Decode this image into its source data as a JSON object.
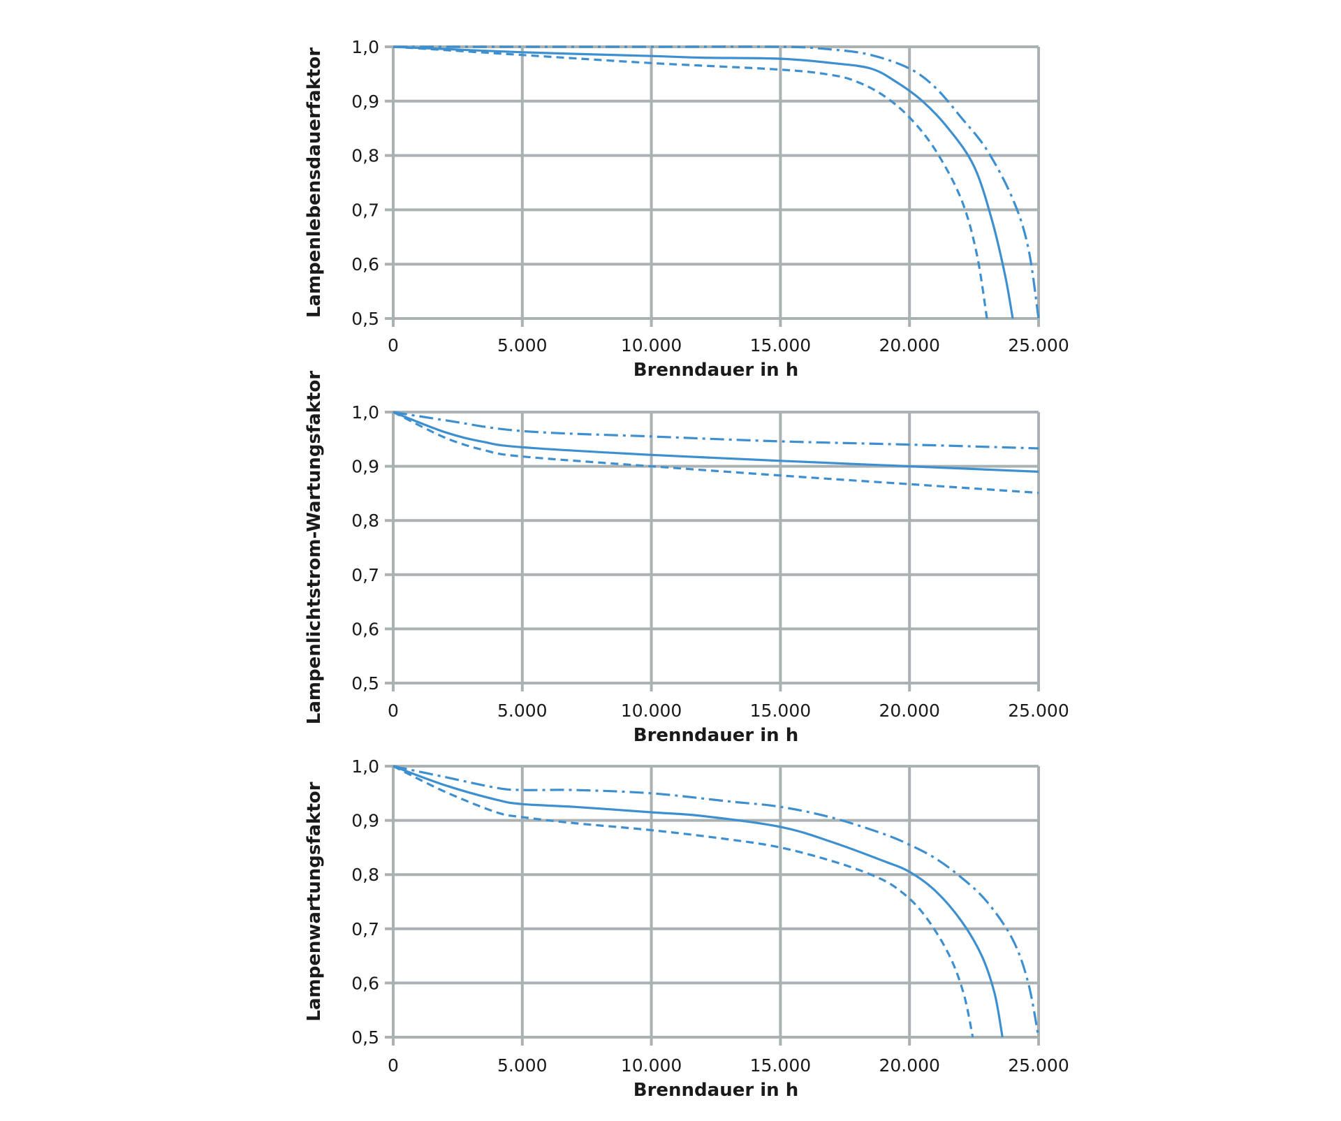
{
  "colors": {
    "line": "#3d8fd0",
    "grid": "#a9b1b3",
    "text": "#1a1a1a"
  },
  "chart_data": [
    {
      "type": "line",
      "ylabel": "Lampenlebensdauerfaktor",
      "xlabel": "Brenndauer in h",
      "xlim": [
        0,
        25000
      ],
      "ylim": [
        0.5,
        1.0
      ],
      "x_ticks": [
        "0",
        "5.000",
        "10.000",
        "15.000",
        "20.000",
        "25.000"
      ],
      "y_ticks": [
        "0,5",
        "0,6",
        "0,7",
        "0,8",
        "0,9",
        "1,0"
      ],
      "grid": true,
      "series": [
        {
          "style": "dashdot",
          "points": [
            [
              0,
              1.0
            ],
            [
              5000,
              1.0
            ],
            [
              10000,
              1.0
            ],
            [
              15000,
              1.0
            ],
            [
              17000,
              0.995
            ],
            [
              18500,
              0.985
            ],
            [
              20000,
              0.96
            ],
            [
              21000,
              0.925
            ],
            [
              22000,
              0.87
            ],
            [
              23000,
              0.81
            ],
            [
              24000,
              0.72
            ],
            [
              24600,
              0.63
            ],
            [
              25000,
              0.5
            ]
          ]
        },
        {
          "style": "solid",
          "points": [
            [
              0,
              1.0
            ],
            [
              5000,
              0.99
            ],
            [
              10000,
              0.983
            ],
            [
              12000,
              0.98
            ],
            [
              15000,
              0.978
            ],
            [
              17000,
              0.97
            ],
            [
              18500,
              0.96
            ],
            [
              19500,
              0.935
            ],
            [
              20500,
              0.9
            ],
            [
              21500,
              0.85
            ],
            [
              22500,
              0.78
            ],
            [
              23200,
              0.68
            ],
            [
              23700,
              0.58
            ],
            [
              24000,
              0.5
            ]
          ]
        },
        {
          "style": "dashed",
          "points": [
            [
              0,
              1.0
            ],
            [
              5000,
              0.985
            ],
            [
              10000,
              0.97
            ],
            [
              15000,
              0.958
            ],
            [
              17000,
              0.948
            ],
            [
              18000,
              0.935
            ],
            [
              19000,
              0.91
            ],
            [
              20000,
              0.87
            ],
            [
              21000,
              0.81
            ],
            [
              22000,
              0.72
            ],
            [
              22600,
              0.62
            ],
            [
              23000,
              0.5
            ]
          ]
        }
      ]
    },
    {
      "type": "line",
      "ylabel": "Lampenlichtstrom-Wartungsfaktor",
      "xlabel": "Brenndauer in h",
      "xlim": [
        0,
        25000
      ],
      "ylim": [
        0.5,
        1.0
      ],
      "x_ticks": [
        "0",
        "5.000",
        "10.000",
        "15.000",
        "20.000",
        "25.000"
      ],
      "y_ticks": [
        "0,5",
        "0,6",
        "0,7",
        "0,8",
        "0,9",
        "1,0"
      ],
      "grid": true,
      "series": [
        {
          "style": "dashdot",
          "points": [
            [
              0,
              1.0
            ],
            [
              2000,
              0.985
            ],
            [
              5000,
              0.965
            ],
            [
              10000,
              0.955
            ],
            [
              15000,
              0.946
            ],
            [
              20000,
              0.94
            ],
            [
              25000,
              0.933
            ]
          ]
        },
        {
          "style": "solid",
          "points": [
            [
              0,
              1.0
            ],
            [
              2000,
              0.963
            ],
            [
              3500,
              0.945
            ],
            [
              5000,
              0.935
            ],
            [
              10000,
              0.921
            ],
            [
              15000,
              0.91
            ],
            [
              20000,
              0.9
            ],
            [
              25000,
              0.89
            ]
          ]
        },
        {
          "style": "dashed",
          "points": [
            [
              0,
              1.0
            ],
            [
              2000,
              0.953
            ],
            [
              3500,
              0.93
            ],
            [
              5000,
              0.918
            ],
            [
              10000,
              0.9
            ],
            [
              15000,
              0.883
            ],
            [
              20000,
              0.867
            ],
            [
              25000,
              0.851
            ]
          ]
        }
      ]
    },
    {
      "type": "line",
      "ylabel": "Lampenwartungsfaktor",
      "xlabel": "Brenndauer in h",
      "xlim": [
        0,
        25000
      ],
      "ylim": [
        0.5,
        1.0
      ],
      "x_ticks": [
        "0",
        "5.000",
        "10.000",
        "15.000",
        "20.000",
        "25.000"
      ],
      "y_ticks": [
        "0,5",
        "0,6",
        "0,7",
        "0,8",
        "0,9",
        "1,0"
      ],
      "grid": true,
      "series": [
        {
          "style": "dashdot",
          "points": [
            [
              0,
              1.0
            ],
            [
              2000,
              0.98
            ],
            [
              4000,
              0.96
            ],
            [
              5000,
              0.956
            ],
            [
              7000,
              0.956
            ],
            [
              10000,
              0.95
            ],
            [
              13000,
              0.935
            ],
            [
              15000,
              0.925
            ],
            [
              17000,
              0.905
            ],
            [
              19000,
              0.875
            ],
            [
              20000,
              0.855
            ],
            [
              21000,
              0.83
            ],
            [
              22000,
              0.795
            ],
            [
              23000,
              0.75
            ],
            [
              24000,
              0.68
            ],
            [
              24600,
              0.6
            ],
            [
              25000,
              0.5
            ]
          ]
        },
        {
          "style": "solid",
          "points": [
            [
              0,
              1.0
            ],
            [
              2000,
              0.965
            ],
            [
              4000,
              0.938
            ],
            [
              5000,
              0.93
            ],
            [
              7000,
              0.925
            ],
            [
              10000,
              0.915
            ],
            [
              12000,
              0.908
            ],
            [
              15000,
              0.888
            ],
            [
              17000,
              0.86
            ],
            [
              19000,
              0.825
            ],
            [
              20000,
              0.805
            ],
            [
              21000,
              0.77
            ],
            [
              22000,
              0.715
            ],
            [
              22800,
              0.65
            ],
            [
              23300,
              0.58
            ],
            [
              23600,
              0.5
            ]
          ]
        },
        {
          "style": "dashed",
          "points": [
            [
              0,
              1.0
            ],
            [
              2000,
              0.953
            ],
            [
              4000,
              0.915
            ],
            [
              5000,
              0.906
            ],
            [
              7000,
              0.895
            ],
            [
              10000,
              0.882
            ],
            [
              13000,
              0.865
            ],
            [
              15000,
              0.85
            ],
            [
              17000,
              0.825
            ],
            [
              18500,
              0.8
            ],
            [
              19500,
              0.775
            ],
            [
              20500,
              0.73
            ],
            [
              21500,
              0.655
            ],
            [
              22100,
              0.58
            ],
            [
              22450,
              0.5
            ]
          ]
        }
      ]
    }
  ]
}
